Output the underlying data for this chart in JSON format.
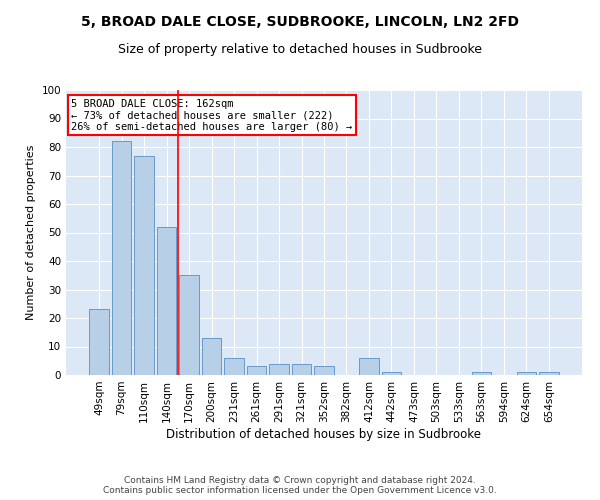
{
  "title1": "5, BROAD DALE CLOSE, SUDBROOKE, LINCOLN, LN2 2FD",
  "title2": "Size of property relative to detached houses in Sudbrooke",
  "xlabel": "Distribution of detached houses by size in Sudbrooke",
  "ylabel": "Number of detached properties",
  "categories": [
    "49sqm",
    "79sqm",
    "110sqm",
    "140sqm",
    "170sqm",
    "200sqm",
    "231sqm",
    "261sqm",
    "291sqm",
    "321sqm",
    "352sqm",
    "382sqm",
    "412sqm",
    "442sqm",
    "473sqm",
    "503sqm",
    "533sqm",
    "563sqm",
    "594sqm",
    "624sqm",
    "654sqm"
  ],
  "values": [
    23,
    82,
    77,
    52,
    35,
    13,
    6,
    3,
    4,
    4,
    3,
    0,
    6,
    1,
    0,
    0,
    0,
    1,
    0,
    1,
    1
  ],
  "bar_color": "#b8cfe8",
  "bar_edge_color": "#6699cc",
  "bg_color": "#dce8f5",
  "grid_color": "#ffffff",
  "vline_color": "red",
  "annotation_box_text": "5 BROAD DALE CLOSE: 162sqm\n← 73% of detached houses are smaller (222)\n26% of semi-detached houses are larger (80) →",
  "annotation_box_color": "red",
  "ylim": [
    0,
    100
  ],
  "yticks": [
    0,
    10,
    20,
    30,
    40,
    50,
    60,
    70,
    80,
    90,
    100
  ],
  "footer": "Contains HM Land Registry data © Crown copyright and database right 2024.\nContains public sector information licensed under the Open Government Licence v3.0.",
  "title1_fontsize": 10,
  "title2_fontsize": 9,
  "xlabel_fontsize": 8.5,
  "ylabel_fontsize": 8,
  "tick_fontsize": 7.5,
  "footer_fontsize": 6.5
}
